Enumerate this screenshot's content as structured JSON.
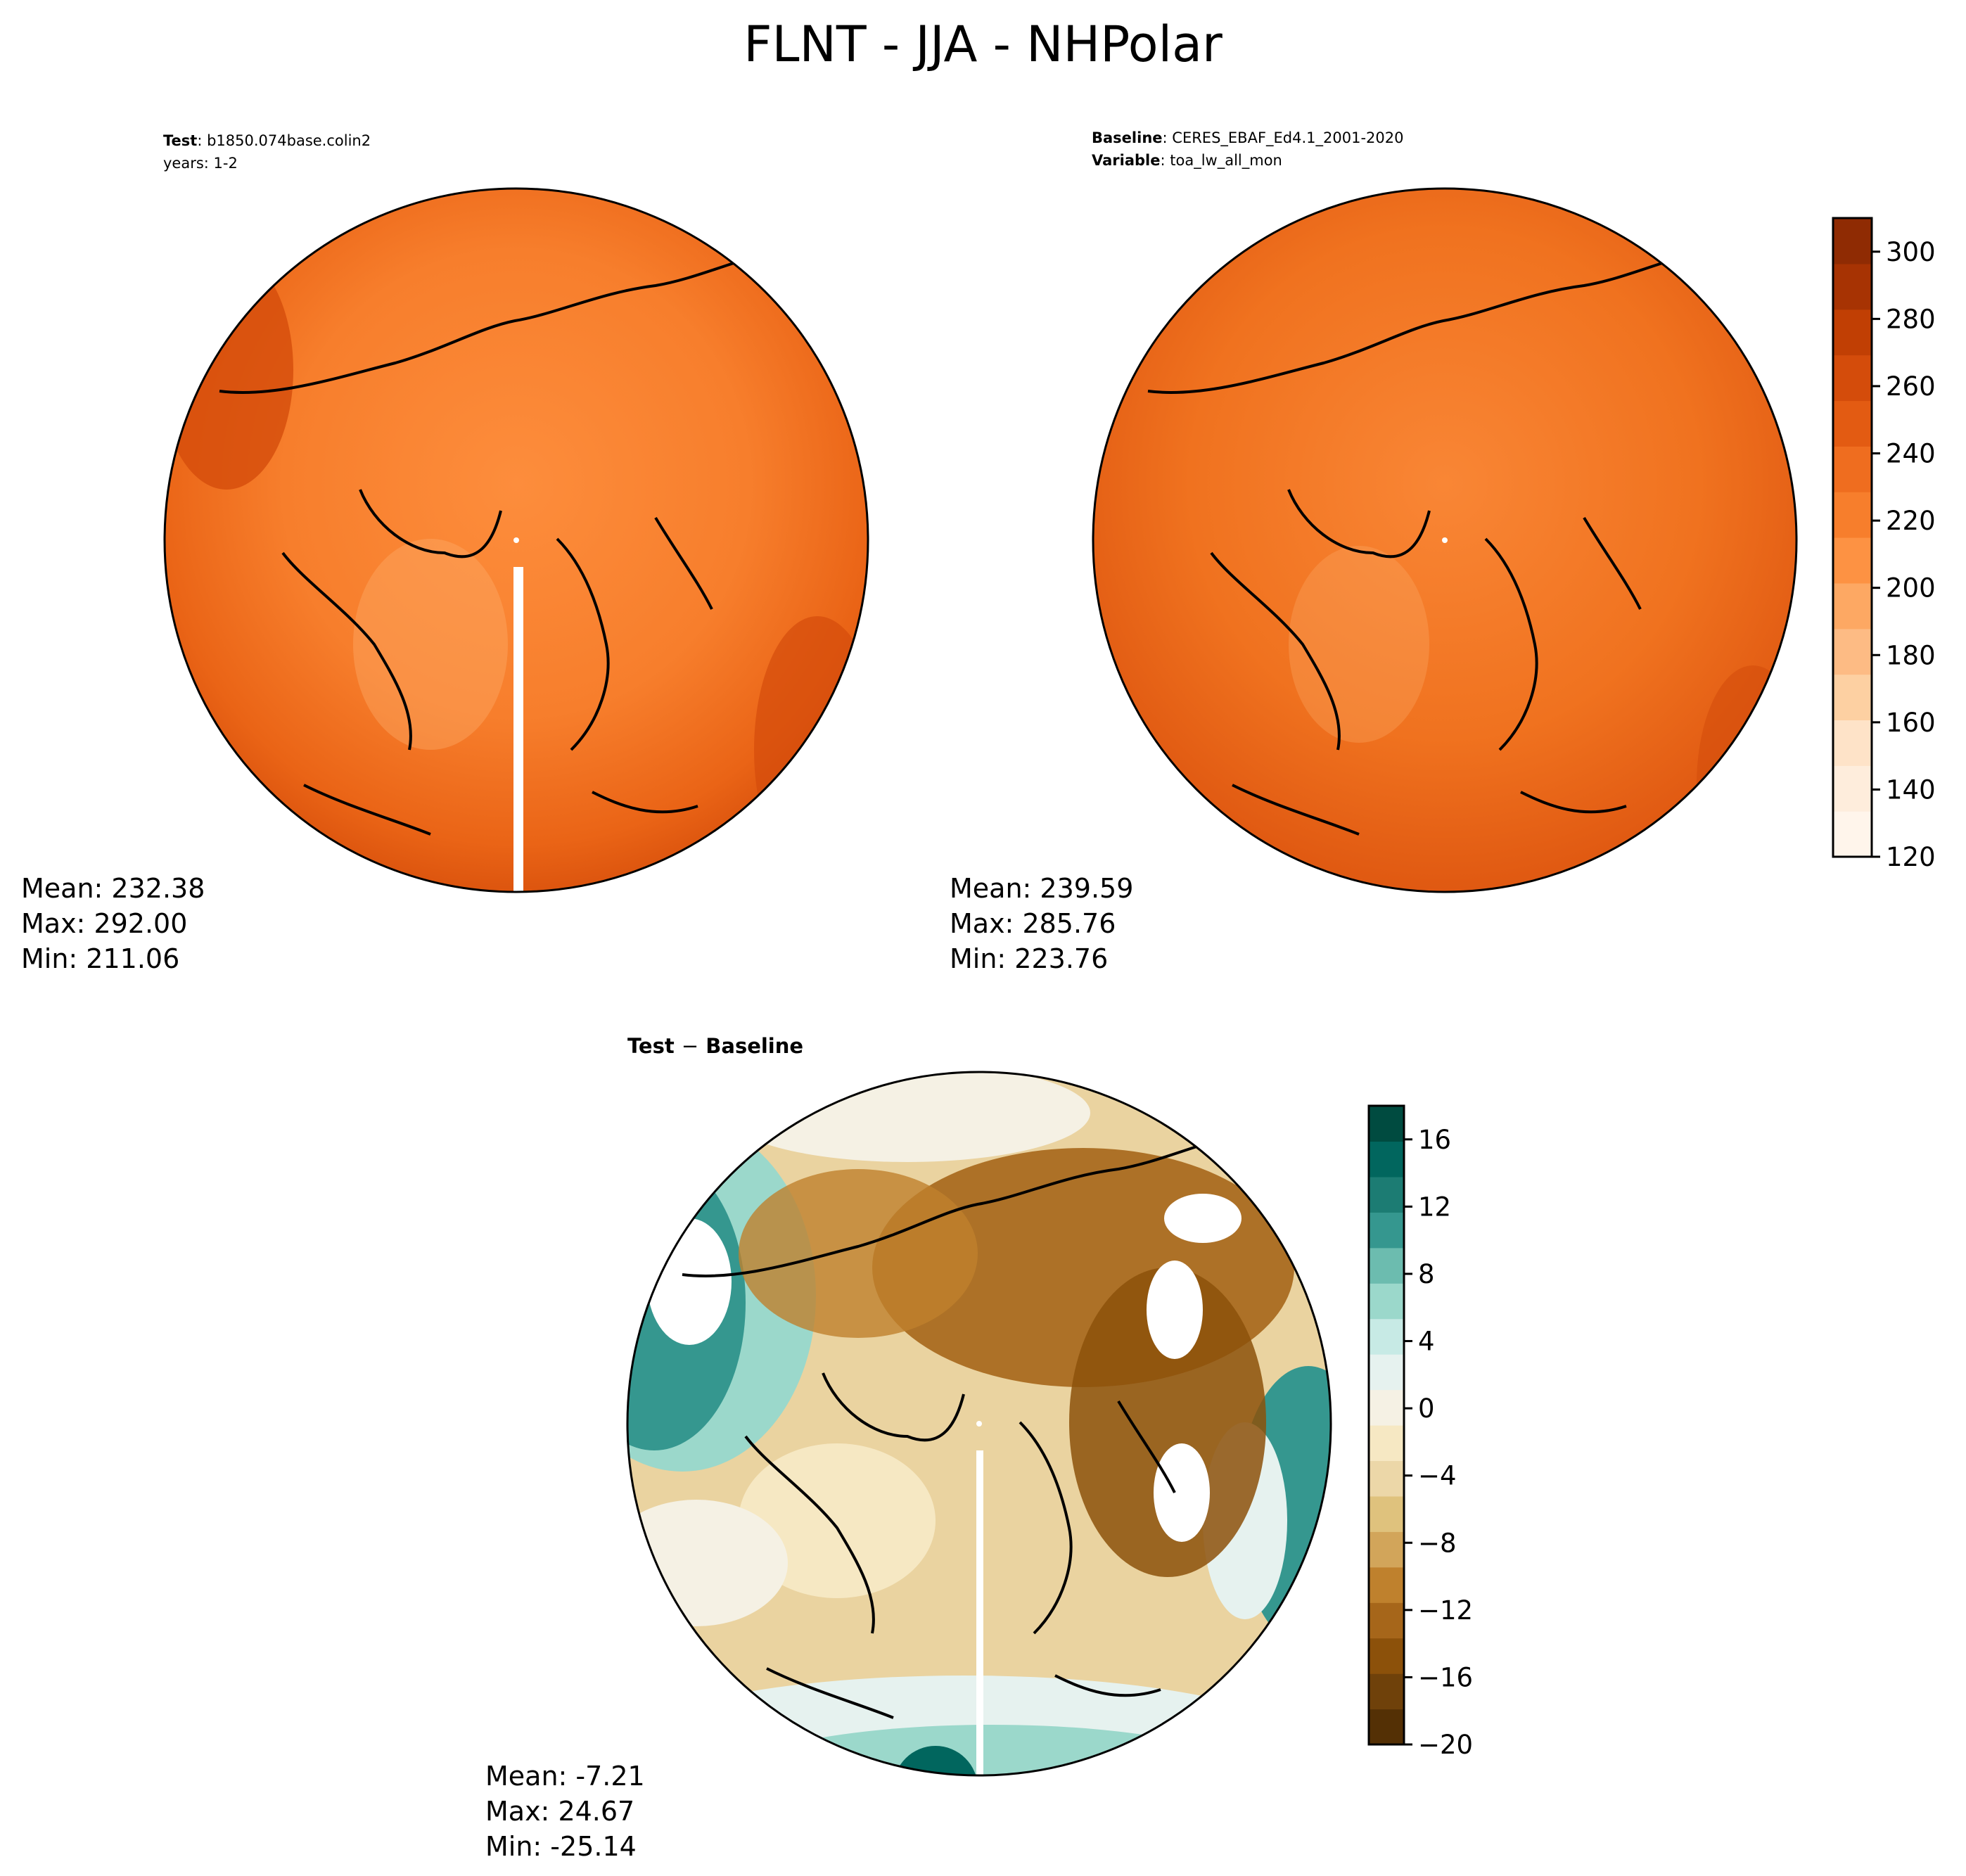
{
  "suptitle": "FLNT - JJA - NHPolar",
  "test_panel": {
    "label_key": "Test",
    "label_value": "b1850.074base.colin2",
    "years": "years: 1-2",
    "stats": {
      "mean": "Mean: 232.38",
      "max": "Max: 292.00",
      "min": "Min: 211.06"
    }
  },
  "baseline_panel": {
    "label_key": "Baseline",
    "label_value": "CERES_EBAF_Ed4.1_2001-2020",
    "variable_key": "Variable",
    "variable_value": "toa_lw_all_mon",
    "stats": {
      "mean": "Mean: 239.59",
      "max": "Max: 285.76",
      "min": "Min: 223.76"
    }
  },
  "diff_panel": {
    "title_test": "Test",
    "title_sep": "−",
    "title_baseline": "Baseline",
    "stats": {
      "mean": "Mean: -7.21",
      "max": "Max: 24.67",
      "min": "Min: -25.14"
    }
  },
  "main_colorbar": {
    "colormap": "Oranges",
    "range": [
      120,
      310
    ],
    "ticks": [
      "120",
      "140",
      "160",
      "180",
      "200",
      "220",
      "240",
      "260",
      "280",
      "300"
    ],
    "colors": [
      "#fff5eb",
      "#feeddc",
      "#fee3c8",
      "#fdd0a2",
      "#fdbb84",
      "#fda863",
      "#fd9243",
      "#f77e2c",
      "#ef6d1f",
      "#e35b12",
      "#d44c0b",
      "#c13f04",
      "#a73303",
      "#8f2b03"
    ]
  },
  "diff_colorbar": {
    "colormap": "BrBG",
    "range": [
      -20,
      18
    ],
    "ticks": [
      "−20",
      "−16",
      "−12",
      "−8",
      "−4",
      "0",
      "4",
      "8",
      "12",
      "16"
    ],
    "colors": [
      "#543005",
      "#6f410a",
      "#8c510a",
      "#a6661a",
      "#bf812d",
      "#d2a55a",
      "#dfc27d",
      "#ecd7a8",
      "#f6e8c3",
      "#f5f1e4",
      "#e6f2ef",
      "#c7eae5",
      "#9bd8cb",
      "#6cbcaf",
      "#35978f",
      "#1c7c73",
      "#01665e",
      "#004b40"
    ]
  },
  "map_fill": {
    "test": "#f47d2c",
    "baseline": "#ef6f1f",
    "diff": "#e9d3a2"
  }
}
